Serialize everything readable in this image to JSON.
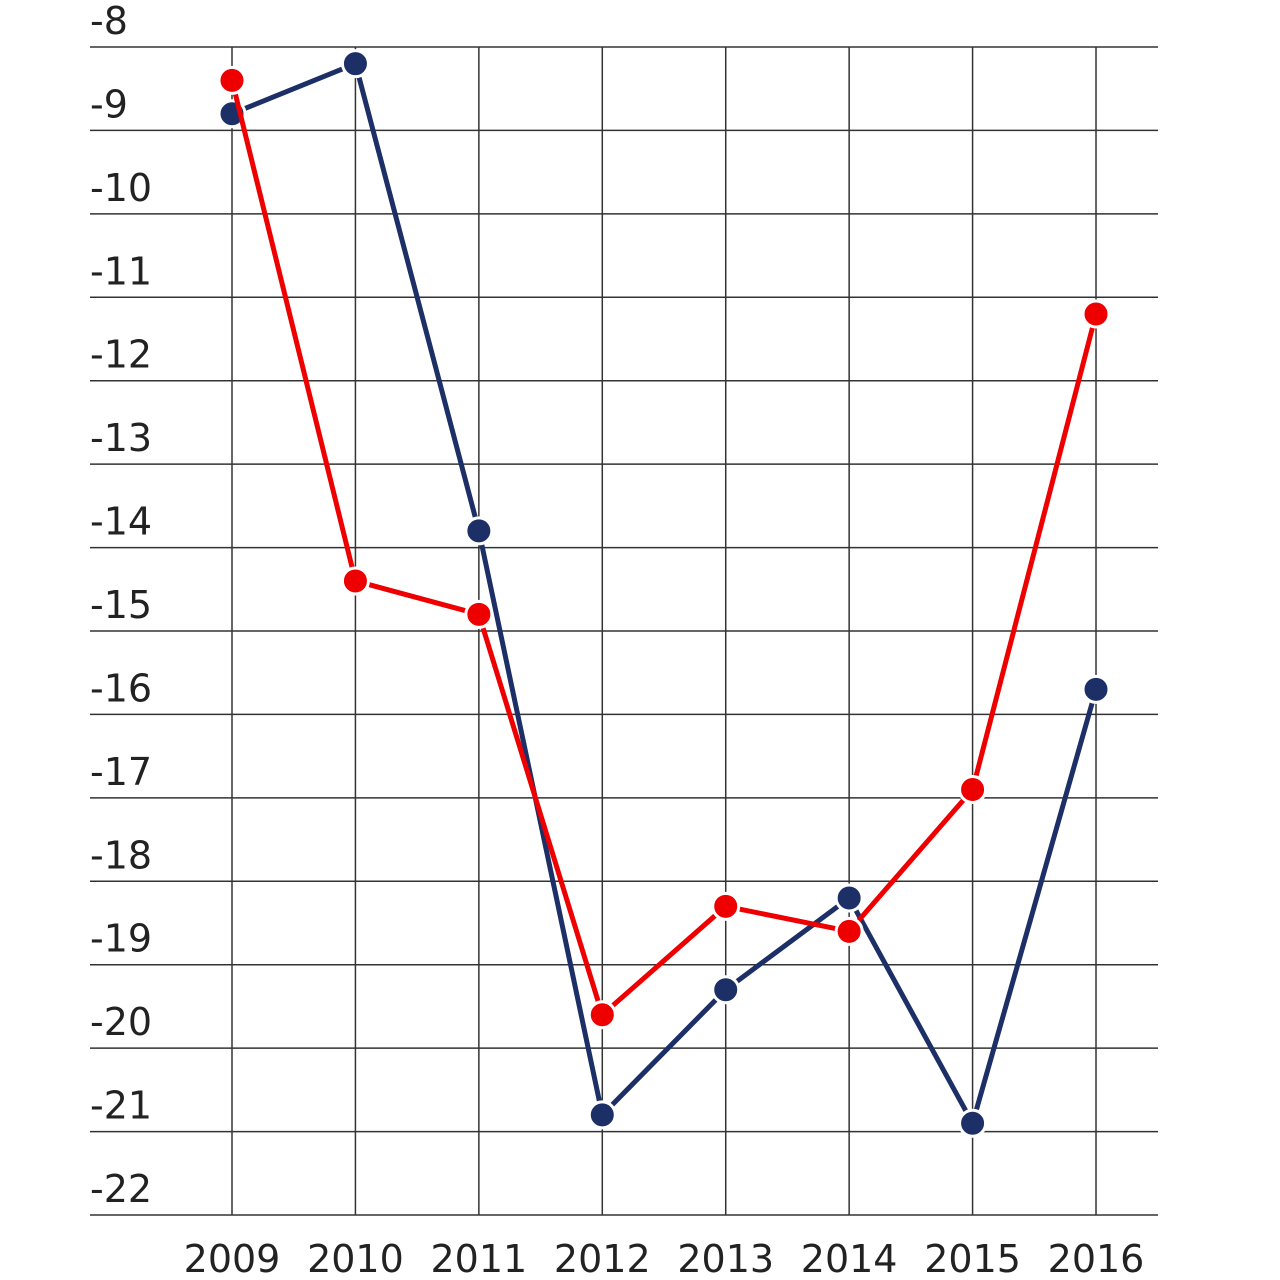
{
  "chart_data": {
    "type": "line",
    "title": "",
    "xlabel": "",
    "ylabel": "",
    "categories": [
      "2009",
      "2010",
      "2011",
      "2012",
      "2013",
      "2014",
      "2015",
      "2016"
    ],
    "yticks": [
      -8,
      -9,
      -10,
      -11,
      -12,
      -13,
      -14,
      -15,
      -16,
      -17,
      -18,
      -19,
      -20,
      -21,
      -22
    ],
    "ylim": [
      -22,
      -8
    ],
    "grid": true,
    "legend": "none",
    "series": [
      {
        "color": "#1c2f66",
        "values": [
          -8.8,
          -8.2,
          -13.8,
          -20.8,
          -19.3,
          -18.2,
          -20.9,
          -15.7
        ]
      },
      {
        "color": "#ee0000",
        "values": [
          -8.4,
          -14.4,
          -14.8,
          -19.6,
          -18.3,
          -18.6,
          -16.9,
          -11.2
        ]
      }
    ],
    "colors": {
      "grid": "#333333",
      "marker_border": "#ffffff"
    }
  }
}
